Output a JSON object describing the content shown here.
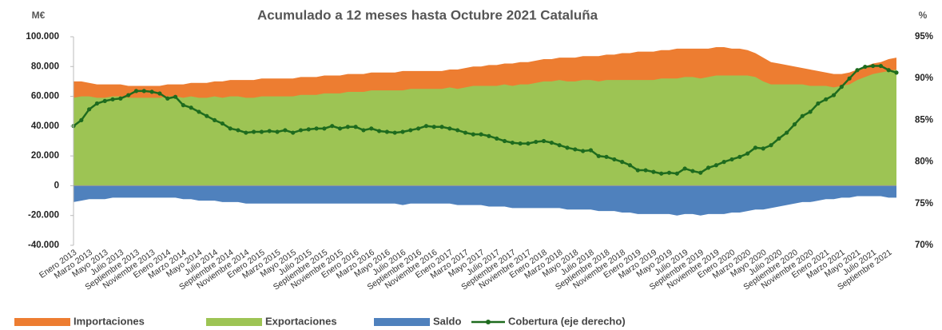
{
  "chart_data": {
    "type": "area",
    "title": "Acumulado a 12 meses hasta Octubre 2021 Cataluña",
    "y_label": "M€",
    "y2_label": "%",
    "categories": [
      "Enero 2013",
      null,
      "Marzo 2013",
      null,
      "Mayo 2013",
      null,
      "Julio 2013",
      null,
      "Septiembre 2013",
      null,
      "Noviembre 2013",
      null,
      "Enero 2014",
      null,
      "Marzo 2014",
      null,
      "Mayo 2014",
      null,
      "Julio 2014",
      null,
      "Septiembre 2014",
      null,
      "Noviembre 2014",
      null,
      "Enero 2015",
      null,
      "Marzo 2015",
      null,
      "Mayo 2015",
      null,
      "Julio 2015",
      null,
      "Septiembre 2015",
      null,
      "Noviembre 2015",
      null,
      "Enero 2016",
      null,
      "Marzo 2016",
      null,
      "Mayo 2016",
      null,
      "Julio 2016",
      null,
      "Septiembre 2016",
      null,
      "Noviembre 2016",
      null,
      "Enero 2017",
      null,
      "Marzo 2017",
      null,
      "Mayo 2017",
      null,
      "Julio 2017",
      null,
      "Septiembre 2017",
      null,
      "Noviembre 2017",
      null,
      "Enero 2018",
      null,
      "Marzo 2018",
      null,
      "Mayo 2018",
      null,
      "Julio 2018",
      null,
      "Septiembre 2018",
      null,
      "Noviembre 2018",
      null,
      "Enero 2019",
      null,
      "Marzo 2019",
      null,
      "Mayo 2019",
      null,
      "Julio 2019",
      null,
      "Septiembre 2019",
      null,
      "Noviembre 2019",
      null,
      "Enero 2020",
      null,
      "Marzo 2020",
      null,
      "Mayo 2020",
      null,
      "Julio 2020",
      null,
      "Septiembre 2020",
      null,
      "Noviembre 2020",
      null,
      "Enero 2021",
      null,
      "Marzo 2021",
      null,
      "Mayo 2021",
      null,
      "Julio 2021",
      null,
      "Septiembre 2021",
      null
    ],
    "series": [
      {
        "name": "Importaciones",
        "type": "area",
        "color": "#ed7d31",
        "values": [
          70000,
          70000,
          69000,
          68000,
          68000,
          68000,
          68000,
          67000,
          67000,
          67000,
          67000,
          67000,
          68000,
          68000,
          68000,
          69000,
          69000,
          69000,
          70000,
          70000,
          71000,
          71000,
          71000,
          71000,
          72000,
          72000,
          72000,
          72000,
          72000,
          73000,
          73000,
          73000,
          74000,
          74000,
          74000,
          75000,
          75000,
          75000,
          76000,
          76000,
          76000,
          76000,
          77000,
          77000,
          77000,
          77000,
          77000,
          77000,
          78000,
          78000,
          79000,
          80000,
          80000,
          81000,
          81000,
          82000,
          82000,
          83000,
          83000,
          84000,
          85000,
          85000,
          86000,
          86000,
          86000,
          87000,
          87000,
          87000,
          88000,
          88000,
          89000,
          89000,
          90000,
          90000,
          90000,
          91000,
          91000,
          92000,
          92000,
          92000,
          92000,
          92000,
          93000,
          93000,
          92000,
          92000,
          91000,
          89000,
          86000,
          83000,
          82000,
          81000,
          80000,
          79000,
          78000,
          77000,
          76000,
          75000,
          75000,
          76000,
          78000,
          80000,
          82000,
          83000,
          85000,
          86000
        ]
      },
      {
        "name": "Exportaciones",
        "type": "area",
        "color": "#9dc454",
        "values": [
          59000,
          60000,
          60000,
          59000,
          59000,
          60000,
          60000,
          59000,
          59000,
          59000,
          59000,
          59000,
          60000,
          60000,
          59000,
          60000,
          59000,
          59000,
          60000,
          59000,
          60000,
          60000,
          59000,
          59000,
          60000,
          60000,
          60000,
          60000,
          60000,
          61000,
          61000,
          61000,
          62000,
          62000,
          62000,
          63000,
          63000,
          63000,
          64000,
          64000,
          64000,
          64000,
          64000,
          65000,
          65000,
          65000,
          65000,
          65000,
          66000,
          65000,
          66000,
          67000,
          67000,
          67000,
          67000,
          68000,
          67000,
          68000,
          68000,
          69000,
          70000,
          70000,
          71000,
          70000,
          70000,
          71000,
          71000,
          70000,
          71000,
          71000,
          71000,
          71000,
          71000,
          71000,
          71000,
          72000,
          72000,
          72000,
          73000,
          73000,
          72000,
          73000,
          74000,
          74000,
          74000,
          74000,
          74000,
          73000,
          70000,
          68000,
          68000,
          68000,
          68000,
          68000,
          67000,
          67000,
          67000,
          66000,
          67000,
          68000,
          71000,
          73000,
          75000,
          76000,
          77000,
          78000
        ]
      },
      {
        "name": "Saldo",
        "type": "area",
        "color": "#4f81bd",
        "values": [
          -11000,
          -10000,
          -9000,
          -9000,
          -9000,
          -8000,
          -8000,
          -8000,
          -8000,
          -8000,
          -8000,
          -8000,
          -8000,
          -8000,
          -9000,
          -9000,
          -10000,
          -10000,
          -10000,
          -11000,
          -11000,
          -11000,
          -12000,
          -12000,
          -12000,
          -12000,
          -12000,
          -12000,
          -12000,
          -12000,
          -12000,
          -12000,
          -12000,
          -12000,
          -12000,
          -12000,
          -12000,
          -12000,
          -12000,
          -12000,
          -12000,
          -12000,
          -13000,
          -12000,
          -12000,
          -12000,
          -12000,
          -12000,
          -12000,
          -13000,
          -13000,
          -13000,
          -13000,
          -14000,
          -14000,
          -14000,
          -15000,
          -15000,
          -15000,
          -15000,
          -15000,
          -15000,
          -15000,
          -16000,
          -16000,
          -16000,
          -16000,
          -17000,
          -17000,
          -17000,
          -18000,
          -18000,
          -19000,
          -19000,
          -19000,
          -19000,
          -19000,
          -20000,
          -19000,
          -19000,
          -20000,
          -19000,
          -19000,
          -19000,
          -18000,
          -18000,
          -17000,
          -16000,
          -16000,
          -15000,
          -14000,
          -13000,
          -12000,
          -11000,
          -11000,
          -10000,
          -9000,
          -9000,
          -8000,
          -8000,
          -7000,
          -7000,
          -7000,
          -7000,
          -8000,
          -8000
        ]
      },
      {
        "name": "Cobertura (eje derecho)",
        "type": "line",
        "axis": "y2",
        "color": "#1e6b1e",
        "values": [
          84.3,
          85,
          86.3,
          87,
          87.3,
          87.5,
          87.6,
          88,
          88.5,
          88.5,
          88.4,
          88.2,
          87.6,
          87.8,
          86.8,
          86.5,
          86,
          85.5,
          85,
          84.6,
          84,
          83.8,
          83.5,
          83.6,
          83.6,
          83.7,
          83.6,
          83.8,
          83.5,
          83.8,
          83.9,
          84,
          84,
          84.3,
          84,
          84.2,
          84.2,
          83.8,
          84,
          83.7,
          83.6,
          83.5,
          83.6,
          83.8,
          84,
          84.3,
          84.2,
          84.2,
          84,
          83.8,
          83.5,
          83.3,
          83.3,
          83.1,
          82.8,
          82.5,
          82.3,
          82.2,
          82.2,
          82.4,
          82.5,
          82.3,
          82,
          81.7,
          81.5,
          81.3,
          81.4,
          80.7,
          80.6,
          80.3,
          80,
          79.6,
          79,
          79,
          78.8,
          78.6,
          78.7,
          78.6,
          79.2,
          78.9,
          78.7,
          79.3,
          79.6,
          80,
          80.3,
          80.6,
          81,
          81.7,
          81.6,
          82,
          82.8,
          83.5,
          84.5,
          85.5,
          86,
          87,
          87.5,
          88,
          89,
          90,
          91,
          91.4,
          91.5,
          91.5,
          91,
          90.7
        ]
      }
    ],
    "ylim": [
      -40000,
      100000
    ],
    "yticks": [
      {
        "value": -40000,
        "label": "-40.000"
      },
      {
        "value": -20000,
        "label": "-20.000"
      },
      0,
      {
        "value": 20000,
        "label": "20.000"
      },
      {
        "value": 40000,
        "label": "40.000"
      },
      {
        "value": 60000,
        "label": "60.000"
      },
      {
        "value": 80000,
        "label": "80.000"
      },
      {
        "value": 100000,
        "label": "100.000"
      }
    ],
    "y2lim": [
      70,
      95
    ],
    "y2ticks": [
      {
        "value": 70,
        "label": "70%"
      },
      {
        "value": 75,
        "label": "75%"
      },
      {
        "value": 80,
        "label": "80%"
      },
      {
        "value": 85,
        "label": "85%"
      },
      {
        "value": 90,
        "label": "90%"
      },
      {
        "value": 95,
        "label": "95%"
      }
    ],
    "grid": false,
    "legend": "bottom"
  }
}
